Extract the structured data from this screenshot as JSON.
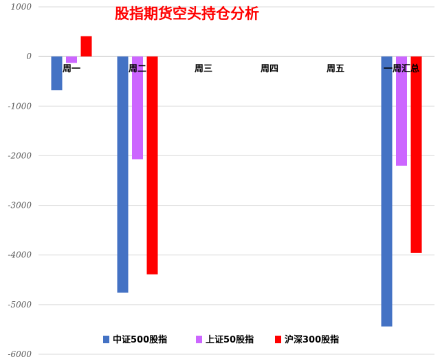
{
  "chart_data": {
    "type": "bar",
    "title": "股指期货空头持仓分析",
    "categories": [
      "周一",
      "周二",
      "周三",
      "周四",
      "周五",
      "一周汇总"
    ],
    "series": [
      {
        "name": "中证500股指",
        "color": "#4472C4",
        "values": [
          -680,
          -4760,
          null,
          null,
          null,
          -5440
        ]
      },
      {
        "name": "上证50股指",
        "color": "#CC66FF",
        "values": [
          -130,
          -2070,
          null,
          null,
          null,
          -2200
        ]
      },
      {
        "name": "沪深300股指",
        "color": "#FF0000",
        "values": [
          410,
          -4390,
          null,
          null,
          null,
          -3960
        ]
      }
    ],
    "yticks": [
      "1000",
      "0",
      "-1000",
      "-2000",
      "-3000",
      "-4000",
      "-5000",
      "-6000"
    ],
    "ylim": [
      -6000,
      1000
    ],
    "grid": true,
    "legend_position": "bottom",
    "title_color": "#FF0000"
  }
}
